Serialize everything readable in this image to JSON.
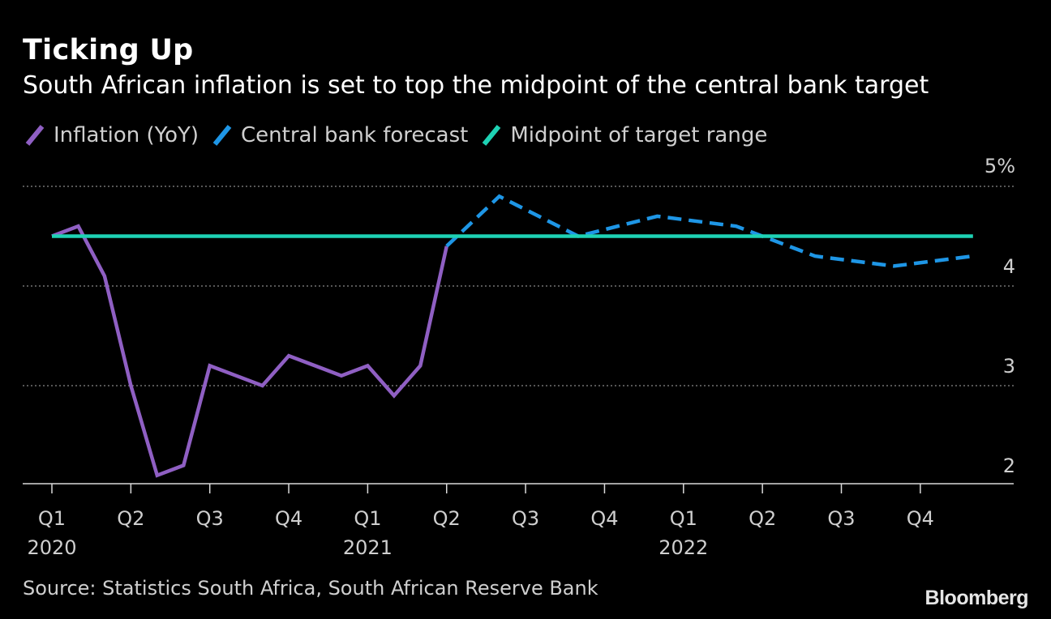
{
  "title": "Ticking Up",
  "subtitle": "South African inflation is set to top the midpoint of the central bank target",
  "source": "Source: Statistics South Africa, South African Reserve Bank",
  "brand": "Bloomberg",
  "colors": {
    "background": "#000000",
    "inflation": "#8f5fc3",
    "forecast": "#1e96e6",
    "midpoint": "#1ed2b4",
    "grid": "#8a8a8a",
    "axis": "#d9d9d9",
    "text": "#cfcfcf"
  },
  "legend": [
    {
      "label": "Inflation (YoY)",
      "color": "#8f5fc3"
    },
    {
      "label": "Central bank forecast",
      "color": "#1e96e6"
    },
    {
      "label": "Midpoint of target range",
      "color": "#1ed2b4"
    }
  ],
  "chart_data": {
    "type": "line",
    "xlabel": "",
    "ylabel": "",
    "ylim": [
      1.8,
      5
    ],
    "y_ticks": [
      {
        "value": 5,
        "label": "5%"
      },
      {
        "value": 4,
        "label": "4"
      },
      {
        "value": 3,
        "label": "3"
      },
      {
        "value": 2,
        "label": "2"
      }
    ],
    "grid": true,
    "legend_position": "top-left",
    "x_ticks": [
      {
        "date": "2020-01",
        "quarter": "Q1",
        "year": "2020"
      },
      {
        "date": "2020-04",
        "quarter": "Q2",
        "year": ""
      },
      {
        "date": "2020-07",
        "quarter": "Q3",
        "year": ""
      },
      {
        "date": "2020-10",
        "quarter": "Q4",
        "year": ""
      },
      {
        "date": "2021-01",
        "quarter": "Q1",
        "year": "2021"
      },
      {
        "date": "2021-04",
        "quarter": "Q2",
        "year": ""
      },
      {
        "date": "2021-07",
        "quarter": "Q3",
        "year": ""
      },
      {
        "date": "2021-10",
        "quarter": "Q4",
        "year": ""
      },
      {
        "date": "2022-01",
        "quarter": "Q1",
        "year": "2022"
      },
      {
        "date": "2022-04",
        "quarter": "Q2",
        "year": ""
      },
      {
        "date": "2022-07",
        "quarter": "Q3",
        "year": ""
      },
      {
        "date": "2022-10",
        "quarter": "Q4",
        "year": ""
      }
    ],
    "series": [
      {
        "name": "Inflation (YoY)",
        "style": "solid",
        "color": "#8f5fc3",
        "points": [
          {
            "x": "2020-01",
            "y": 4.5
          },
          {
            "x": "2020-02",
            "y": 4.6
          },
          {
            "x": "2020-03",
            "y": 4.1
          },
          {
            "x": "2020-04",
            "y": 3.0
          },
          {
            "x": "2020-05",
            "y": 2.1
          },
          {
            "x": "2020-06",
            "y": 2.2
          },
          {
            "x": "2020-07",
            "y": 3.2
          },
          {
            "x": "2020-08",
            "y": 3.1
          },
          {
            "x": "2020-09",
            "y": 3.0
          },
          {
            "x": "2020-10",
            "y": 3.3
          },
          {
            "x": "2020-11",
            "y": 3.2
          },
          {
            "x": "2020-12",
            "y": 3.1
          },
          {
            "x": "2021-01",
            "y": 3.2
          },
          {
            "x": "2021-02",
            "y": 2.9
          },
          {
            "x": "2021-03",
            "y": 3.2
          },
          {
            "x": "2021-04",
            "y": 4.4
          }
        ]
      },
      {
        "name": "Central bank forecast",
        "style": "dashed",
        "color": "#1e96e6",
        "points": [
          {
            "x": "2021-04",
            "y": 4.4
          },
          {
            "x": "2021-06",
            "y": 4.9
          },
          {
            "x": "2021-09",
            "y": 4.5
          },
          {
            "x": "2021-12",
            "y": 4.7
          },
          {
            "x": "2022-03",
            "y": 4.6
          },
          {
            "x": "2022-06",
            "y": 4.3
          },
          {
            "x": "2022-09",
            "y": 4.2
          },
          {
            "x": "2022-12",
            "y": 4.3
          }
        ]
      },
      {
        "name": "Midpoint of target range",
        "style": "solid",
        "color": "#1ed2b4",
        "points": [
          {
            "x": "2020-01",
            "y": 4.5
          },
          {
            "x": "2022-12",
            "y": 4.5
          }
        ]
      }
    ]
  }
}
